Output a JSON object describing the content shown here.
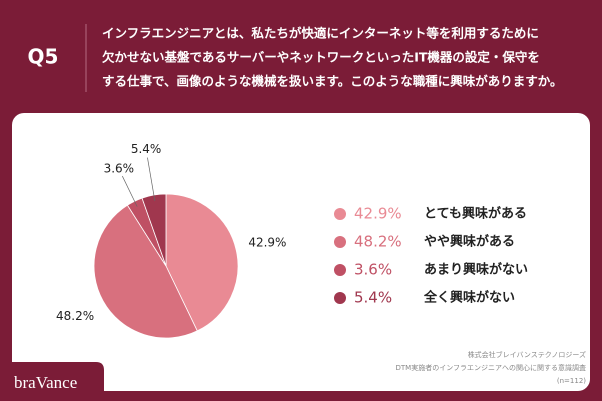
{
  "header": {
    "question_no": "Q5",
    "question_lines": [
      "インフラエンジニアとは、私たちが快適にインターネット等を利用するために",
      "欠かせない基盤であるサーバーやネットワークといったIT機器の設定・保守を",
      "する仕事で、画像のような機械を扱います。このような職種に興味がありますか。"
    ]
  },
  "chart_data": {
    "type": "pie",
    "categories": [
      "とても興味がある",
      "やや興味がある",
      "あまり興味がない",
      "全く興味がない"
    ],
    "values": [
      42.9,
      48.2,
      3.6,
      5.4
    ],
    "value_labels": [
      "42.9%",
      "48.2%",
      "3.6%",
      "5.4%"
    ],
    "colors": [
      "#e98a94",
      "#d8707e",
      "#bf5064",
      "#a0374e"
    ]
  },
  "footer": {
    "lines": [
      "株式会社ブレイバンステクノロジーズ",
      "DTM実施者のインフラエンジニアへの関心に関する意識調査",
      "(n=112)"
    ]
  },
  "logo": "braVance"
}
